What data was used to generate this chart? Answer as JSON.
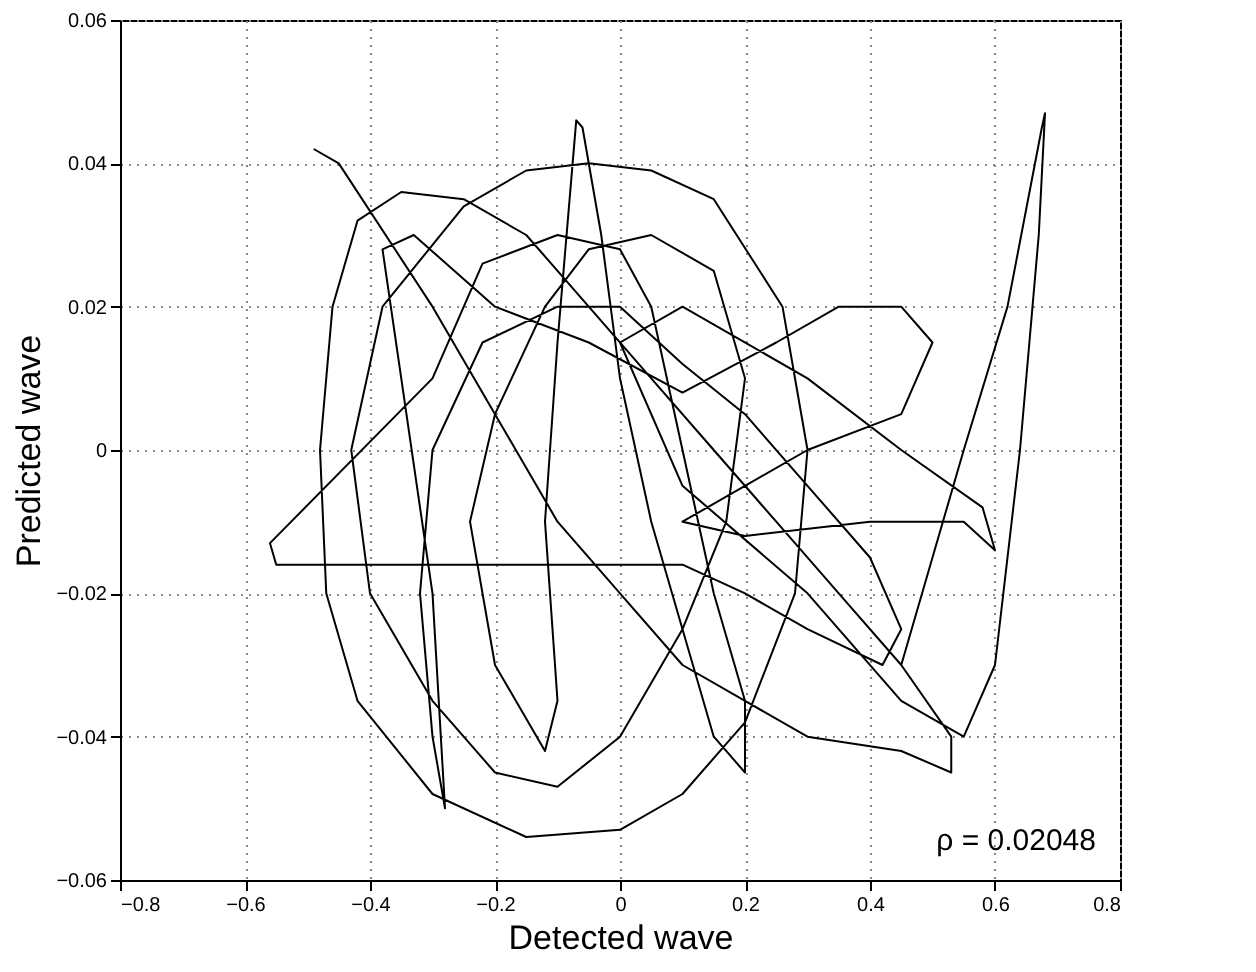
{
  "chart_data": {
    "type": "line",
    "xlabel": "Detected wave",
    "ylabel": "Predicted wave",
    "annotations": [
      "ρ = 0.02048"
    ],
    "xlim": [
      -0.8,
      0.8
    ],
    "ylim": [
      -0.06,
      0.06
    ],
    "xticks": [
      -0.8,
      -0.6,
      -0.4,
      -0.2,
      0,
      0.2,
      0.4,
      0.6,
      0.8
    ],
    "yticks": [
      -0.06,
      -0.04,
      -0.02,
      0,
      0.02,
      0.04,
      0.06
    ],
    "grid": true,
    "marker": "none",
    "line_style": "solid",
    "series": [
      {
        "color": "#000000",
        "x": [
          -0.49,
          -0.45,
          -0.3,
          -0.2,
          -0.1,
          0.0,
          0.1,
          0.2,
          0.3,
          0.45,
          0.53,
          0.53,
          0.45,
          0.35,
          0.25,
          0.15,
          0.05,
          -0.05,
          -0.15,
          -0.25,
          -0.35,
          -0.42,
          -0.46,
          -0.48,
          -0.47,
          -0.42,
          -0.3,
          -0.15,
          0.0,
          0.1,
          0.2,
          0.28,
          0.3,
          0.26,
          0.15,
          0.05,
          -0.05,
          -0.15,
          -0.25,
          -0.38,
          -0.43,
          -0.4,
          -0.3,
          -0.2,
          -0.1,
          0.0,
          0.1,
          0.17,
          0.2,
          0.15,
          0.05,
          -0.05,
          -0.12,
          -0.2,
          -0.24,
          -0.2,
          -0.12,
          -0.1,
          -0.12,
          -0.1,
          -0.07,
          -0.06,
          -0.03,
          0.0,
          0.05,
          0.1,
          0.15,
          0.2,
          0.2,
          0.15,
          0.1,
          0.05,
          0.0,
          -0.1,
          -0.22,
          -0.3,
          -0.56,
          -0.55,
          -0.3,
          -0.1,
          0.1,
          0.2,
          0.3,
          0.42,
          0.45,
          0.4,
          0.3,
          0.2,
          0.1,
          0.0,
          -0.1,
          -0.22,
          -0.3,
          -0.32,
          -0.3,
          -0.28,
          -0.3,
          -0.35,
          -0.38,
          -0.33,
          -0.2,
          -0.05,
          0.1,
          0.25,
          0.35,
          0.45,
          0.5,
          0.45,
          0.3,
          0.2,
          0.1,
          0.2,
          0.4,
          0.55,
          0.6,
          0.58,
          0.45,
          0.3,
          0.1,
          0.0,
          0.1,
          0.3,
          0.45,
          0.55,
          0.6,
          0.64,
          0.67,
          0.68,
          0.675,
          0.62,
          0.55,
          0.5,
          0.45
        ],
        "values": [
          0.042,
          0.04,
          0.02,
          0.005,
          -0.01,
          -0.02,
          -0.03,
          -0.035,
          -0.04,
          -0.042,
          -0.045,
          -0.04,
          -0.03,
          -0.02,
          -0.01,
          0.0,
          0.01,
          0.02,
          0.03,
          0.035,
          0.036,
          0.032,
          0.02,
          0.0,
          -0.02,
          -0.035,
          -0.048,
          -0.054,
          -0.053,
          -0.048,
          -0.038,
          -0.02,
          0.0,
          0.02,
          0.035,
          0.039,
          0.04,
          0.039,
          0.034,
          0.02,
          0.0,
          -0.02,
          -0.035,
          -0.045,
          -0.047,
          -0.04,
          -0.025,
          -0.01,
          0.01,
          0.025,
          0.03,
          0.028,
          0.02,
          0.005,
          -0.01,
          -0.03,
          -0.042,
          -0.035,
          -0.01,
          0.015,
          0.046,
          0.045,
          0.03,
          0.01,
          -0.01,
          -0.025,
          -0.04,
          -0.045,
          -0.035,
          -0.02,
          0.0,
          0.02,
          0.028,
          0.03,
          0.026,
          0.01,
          -0.013,
          -0.016,
          -0.016,
          -0.016,
          -0.016,
          -0.02,
          -0.025,
          -0.03,
          -0.025,
          -0.015,
          -0.005,
          0.005,
          0.012,
          0.02,
          0.02,
          0.015,
          0.0,
          -0.02,
          -0.04,
          -0.05,
          -0.02,
          0.01,
          0.028,
          0.03,
          0.02,
          0.015,
          0.008,
          0.015,
          0.02,
          0.02,
          0.015,
          0.005,
          0.0,
          -0.005,
          -0.01,
          -0.012,
          -0.01,
          -0.01,
          -0.014,
          -0.008,
          0.0,
          0.01,
          0.02,
          0.015,
          -0.005,
          -0.02,
          -0.035,
          -0.04,
          -0.03,
          0.0,
          0.03,
          0.047,
          0.045,
          0.02,
          0.0,
          -0.015,
          -0.03
        ]
      }
    ]
  }
}
